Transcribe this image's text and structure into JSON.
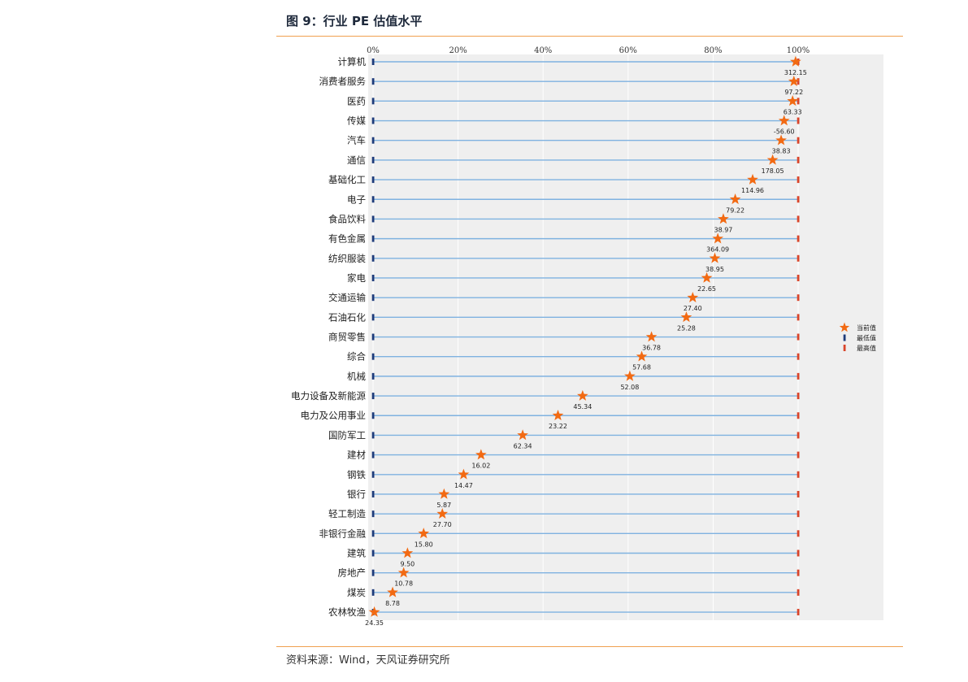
{
  "figure": {
    "title": "图 9：行业 PE 估值水平",
    "source": "资料来源：Wind，天风证券研究所"
  },
  "colors": {
    "rule": "#f0a050",
    "plot_bg": "#efefef",
    "row_line": "#7fb2e0",
    "current_marker": "#f26a13",
    "min_marker": "#1d3b7a",
    "max_marker": "#d9442a"
  },
  "chart_data": {
    "type": "scatter",
    "x_axis": {
      "range": [
        0,
        100
      ],
      "ticks": [
        "0%",
        "20%",
        "40%",
        "60%",
        "80%",
        "100%"
      ],
      "position": "top"
    },
    "legend": {
      "placement": "right",
      "entries": [
        {
          "label": "当前值",
          "marker": "star"
        },
        {
          "label": "最低值",
          "marker": "bar"
        },
        {
          "label": "最高值",
          "marker": "bar"
        }
      ]
    },
    "categories": [
      "计算机",
      "消费者服务",
      "医药",
      "传媒",
      "汽车",
      "通信",
      "基础化工",
      "电子",
      "食品饮料",
      "有色金属",
      "纺织服装",
      "家电",
      "交通运输",
      "石油石化",
      "商贸零售",
      "综合",
      "机械",
      "电力设备及新能源",
      "电力及公用事业",
      "国防军工",
      "建材",
      "钢铁",
      "银行",
      "轻工制造",
      "非银行金融",
      "建筑",
      "房地产",
      "煤炭",
      "农林牧渔"
    ],
    "current_percentile": [
      99.4,
      99.0,
      98.7,
      96.7,
      96.0,
      94.0,
      89.3,
      85.2,
      82.4,
      81.1,
      80.4,
      78.5,
      75.2,
      73.7,
      65.5,
      63.2,
      60.4,
      49.3,
      43.5,
      35.2,
      25.4,
      21.3,
      16.7,
      16.3,
      11.9,
      8.1,
      7.2,
      4.6,
      0.3
    ],
    "current_labels": [
      "312.15",
      "97.22",
      "63.33",
      "-56.60",
      "38.83",
      "178.05",
      "114.96",
      "79.22",
      "38.97",
      "364.09",
      "38.95",
      "22.65",
      "27.40",
      "25.28",
      "36.78",
      "57.68",
      "52.08",
      "45.34",
      "23.22",
      "62.34",
      "16.02",
      "14.47",
      "5.87",
      "27.70",
      "15.80",
      "9.50",
      "10.78",
      "8.78",
      "24.35"
    ],
    "min_percentile": 0,
    "max_percentile": 100
  }
}
